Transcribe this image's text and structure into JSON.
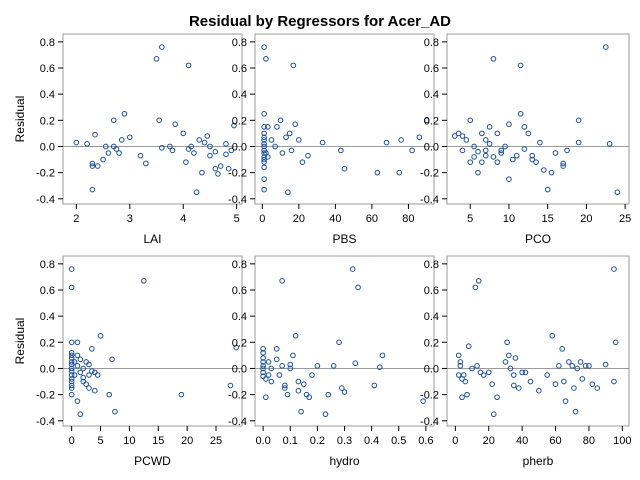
{
  "title": "Residual by Regressors for Acer_AD",
  "colors": {
    "marker": "#1a4f9c",
    "frame": "#9a9a9a",
    "refline": "#9a9a9a",
    "text": "#000000"
  },
  "chart_data": [
    {
      "type": "scatter",
      "xlabel": "LAI",
      "ylabel": "Residual",
      "xlim": [
        1.75,
        5.1
      ],
      "ylim": [
        -0.44,
        0.86
      ],
      "xticks": [
        2,
        3,
        4,
        5
      ],
      "yticks": [
        -0.4,
        -0.2,
        0.0,
        0.2,
        0.4,
        0.6,
        0.8
      ],
      "reference_line_y": 0,
      "x": [
        2.0,
        2.2,
        2.3,
        2.3,
        2.3,
        2.35,
        2.4,
        2.5,
        2.55,
        2.6,
        2.7,
        2.7,
        2.75,
        2.8,
        2.85,
        2.9,
        3.0,
        3.2,
        3.3,
        3.5,
        3.55,
        3.6,
        3.6,
        3.75,
        3.8,
        3.85,
        4.0,
        4.05,
        4.1,
        4.1,
        4.15,
        4.2,
        4.25,
        4.3,
        4.35,
        4.4,
        4.45,
        4.5,
        4.5,
        4.6,
        4.6,
        4.65,
        4.7,
        4.8,
        4.8,
        4.85,
        4.9,
        4.95
      ],
      "y": [
        0.03,
        0.02,
        -0.33,
        -0.13,
        -0.15,
        0.09,
        -0.15,
        -0.1,
        0.0,
        -0.05,
        0.2,
        0.0,
        -0.02,
        -0.05,
        0.05,
        0.25,
        0.07,
        -0.07,
        -0.13,
        0.67,
        0.2,
        0.76,
        -0.01,
        0.0,
        -0.03,
        0.17,
        0.1,
        -0.12,
        0.62,
        -0.02,
        0.0,
        -0.05,
        -0.35,
        0.05,
        -0.2,
        0.03,
        0.08,
        -0.07,
        0.0,
        -0.04,
        -0.17,
        -0.21,
        -0.15,
        -0.06,
        0.02,
        -0.17,
        -0.03,
        0.16
      ]
    },
    {
      "type": "scatter",
      "xlabel": "PBS",
      "ylabel": "",
      "xlim": [
        -4,
        94
      ],
      "ylim": [
        -0.44,
        0.86
      ],
      "xticks": [
        0,
        20,
        40,
        60,
        80
      ],
      "yticks": [
        -0.4,
        -0.2,
        0.0,
        0.2,
        0.4,
        0.6,
        0.8
      ],
      "reference_line_y": 0,
      "x": [
        1,
        1,
        1,
        1,
        1,
        1,
        1,
        1,
        1,
        1,
        1,
        1,
        1,
        1,
        1,
        1,
        2,
        2,
        3,
        3,
        5,
        7,
        8,
        10,
        11,
        13,
        14,
        15,
        16,
        17,
        18,
        20,
        22,
        25,
        33,
        43,
        45,
        63,
        68,
        75,
        76,
        82,
        86,
        90
      ],
      "y": [
        0.76,
        0.25,
        0.15,
        0.1,
        0.07,
        0.05,
        0.02,
        0.0,
        -0.03,
        -0.05,
        -0.08,
        -0.1,
        -0.12,
        -0.16,
        -0.25,
        -0.33,
        0.67,
        -0.05,
        0.15,
        -0.08,
        0.05,
        0.0,
        0.15,
        0.2,
        -0.05,
        0.07,
        -0.35,
        0.1,
        -0.03,
        0.62,
        0.17,
        0.05,
        -0.12,
        -0.07,
        0.03,
        -0.03,
        -0.17,
        -0.2,
        0.03,
        -0.2,
        0.05,
        -0.03,
        0.07,
        0.2
      ]
    },
    {
      "type": "scatter",
      "xlabel": "PCO",
      "ylabel": "",
      "xlim": [
        2.0,
        25.5
      ],
      "ylim": [
        -0.44,
        0.86
      ],
      "xticks": [
        5,
        10,
        15,
        20,
        25
      ],
      "yticks": [
        -0.4,
        -0.2,
        0.0,
        0.2,
        0.4,
        0.6,
        0.8
      ],
      "reference_line_y": 0,
      "x": [
        3,
        3.5,
        4,
        4,
        4.5,
        5,
        5,
        5.5,
        5.5,
        6,
        6,
        6.5,
        6.5,
        7,
        7,
        7,
        7.5,
        7.5,
        8,
        8,
        8.5,
        8.5,
        9,
        9,
        9.5,
        10,
        10,
        10.5,
        11,
        11.5,
        11.5,
        12,
        12,
        12.5,
        13,
        13,
        13.5,
        14,
        14.5,
        15,
        15.5,
        16,
        17,
        17,
        17.5,
        19,
        19,
        22.5,
        23,
        24
      ],
      "y": [
        0.08,
        0.1,
        -0.03,
        0.08,
        0.05,
        0.2,
        -0.12,
        -0.08,
        0.0,
        -0.04,
        -0.2,
        -0.12,
        0.1,
        0.05,
        -0.03,
        -0.07,
        0.15,
        0.02,
        0.67,
        -0.08,
        -0.12,
        0.1,
        -0.03,
        -0.05,
        0.0,
        -0.25,
        0.17,
        -0.1,
        -0.07,
        0.62,
        0.25,
        -0.02,
        0.15,
        0.1,
        -0.1,
        -0.07,
        -0.12,
        0.03,
        -0.18,
        -0.33,
        -0.2,
        -0.05,
        -0.13,
        -0.15,
        -0.03,
        0.2,
        0.03,
        0.76,
        0.02,
        -0.35
      ]
    },
    {
      "type": "scatter",
      "xlabel": "PCWD",
      "ylabel": "Residual",
      "xlim": [
        -1.5,
        29.5
      ],
      "ylim": [
        -0.44,
        0.86
      ],
      "xticks": [
        0,
        5,
        10,
        15,
        20,
        25
      ],
      "yticks": [
        -0.4,
        -0.2,
        0.0,
        0.2,
        0.4,
        0.6,
        0.8
      ],
      "reference_line_y": 0,
      "x": [
        0,
        0,
        0,
        0,
        0,
        0,
        0,
        0,
        0,
        0,
        0,
        0,
        0,
        0,
        0,
        0,
        0.5,
        0.5,
        1,
        1,
        1,
        1,
        1.5,
        1.5,
        1.5,
        2,
        2,
        2,
        2.5,
        2.5,
        3,
        3,
        3,
        3.5,
        3.5,
        4,
        4,
        4.5,
        5,
        6.5,
        7,
        7.5,
        12.5,
        19,
        27.5,
        28.5
      ],
      "y": [
        0.76,
        0.62,
        0.2,
        0.12,
        0.1,
        0.08,
        0.05,
        0.03,
        0.0,
        -0.02,
        -0.05,
        -0.08,
        -0.1,
        -0.13,
        -0.15,
        -0.2,
        0.05,
        -0.05,
        0.2,
        0.1,
        0.02,
        -0.25,
        0.07,
        -0.03,
        -0.35,
        0.0,
        -0.07,
        -0.1,
        -0.12,
        0.05,
        0.03,
        -0.15,
        -0.05,
        0.15,
        -0.02,
        -0.17,
        -0.03,
        -0.05,
        0.25,
        -0.2,
        0.07,
        -0.33,
        0.67,
        -0.2,
        -0.13,
        0.16
      ]
    },
    {
      "type": "scatter",
      "xlabel": "hydro",
      "ylabel": "",
      "xlim": [
        -0.03,
        0.63
      ],
      "ylim": [
        -0.44,
        0.86
      ],
      "xticks": [
        0.0,
        0.1,
        0.2,
        0.3,
        0.4,
        0.5,
        0.6
      ],
      "yticks": [
        -0.4,
        -0.2,
        0.0,
        0.2,
        0.4,
        0.6,
        0.8
      ],
      "reference_line_y": 0,
      "x": [
        0.0,
        0.0,
        0.0,
        0.0,
        0.0,
        0.0,
        0.0,
        0.0,
        0.01,
        0.01,
        0.02,
        0.02,
        0.03,
        0.03,
        0.05,
        0.05,
        0.06,
        0.07,
        0.07,
        0.08,
        0.08,
        0.09,
        0.1,
        0.1,
        0.11,
        0.12,
        0.13,
        0.13,
        0.14,
        0.15,
        0.16,
        0.17,
        0.18,
        0.2,
        0.23,
        0.24,
        0.26,
        0.28,
        0.29,
        0.3,
        0.33,
        0.34,
        0.35,
        0.41,
        0.43,
        0.44,
        0.59
      ],
      "y": [
        0.15,
        0.12,
        0.08,
        0.05,
        0.02,
        0.0,
        -0.03,
        -0.06,
        -0.22,
        -0.08,
        0.05,
        -0.05,
        0.0,
        -0.1,
        0.15,
        0.07,
        -0.05,
        0.67,
        0.02,
        -0.13,
        -0.15,
        -0.2,
        0.03,
        0.0,
        0.1,
        0.25,
        -0.1,
        -0.17,
        -0.33,
        -0.12,
        -0.2,
        -0.22,
        -0.05,
        0.02,
        -0.35,
        -0.2,
        0.02,
        0.2,
        -0.15,
        -0.18,
        0.76,
        0.04,
        0.62,
        -0.13,
        0.01,
        0.1,
        -0.25
      ]
    },
    {
      "type": "scatter",
      "xlabel": "pherb",
      "ylabel": "",
      "xlim": [
        -5,
        104
      ],
      "ylim": [
        -0.44,
        0.86
      ],
      "xticks": [
        0,
        20,
        40,
        60,
        80,
        100
      ],
      "yticks": [
        -0.4,
        -0.2,
        0.0,
        0.2,
        0.4,
        0.6,
        0.8
      ],
      "reference_line_y": 0,
      "x": [
        2,
        2,
        3,
        3,
        4,
        4,
        5,
        6,
        7,
        8,
        10,
        12,
        13,
        14,
        15,
        17,
        20,
        22,
        23,
        25,
        30,
        31,
        32,
        33,
        35,
        35,
        36,
        38,
        40,
        42,
        45,
        50,
        55,
        58,
        60,
        62,
        64,
        65,
        66,
        68,
        70,
        71,
        72,
        73,
        75,
        76,
        78,
        80,
        82,
        85,
        90,
        95,
        95,
        96
      ],
      "y": [
        0.1,
        -0.05,
        0.05,
        0.02,
        -0.08,
        -0.22,
        -0.05,
        -0.1,
        -0.2,
        0.17,
        0.0,
        0.62,
        0.02,
        0.67,
        -0.03,
        -0.05,
        -0.03,
        -0.12,
        -0.35,
        -0.22,
        0.05,
        0.2,
        0.1,
        0.0,
        -0.05,
        -0.13,
        0.08,
        -0.15,
        -0.03,
        -0.03,
        -0.1,
        -0.17,
        -0.05,
        0.25,
        -0.12,
        0.02,
        0.15,
        -0.1,
        -0.25,
        0.05,
        0.02,
        -0.15,
        -0.33,
        0.0,
        0.05,
        -0.08,
        0.02,
        0.02,
        -0.12,
        -0.15,
        0.03,
        0.76,
        -0.1,
        0.2
      ]
    }
  ]
}
